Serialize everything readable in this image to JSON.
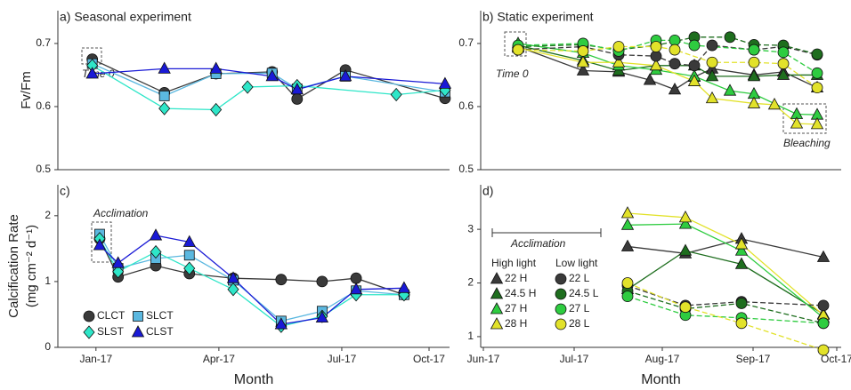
{
  "chart_data": [
    {
      "type": "line",
      "title": "a) Seasonal experiment",
      "ylabel": "Fv/Fm",
      "xlim": [
        -0.93,
        8.63
      ],
      "ylim": [
        0.5,
        0.752
      ],
      "yticks": [
        0.5,
        0.6,
        0.7
      ],
      "annotations": [
        "Time 0"
      ],
      "series": [
        {
          "name": "CLCT",
          "color": "#3a3a3a",
          "marker": "circle",
          "x": [
            -0.09,
            1.67,
            2.93,
            4.3,
            4.91,
            6.09,
            8.52
          ],
          "values": [
            0.675,
            0.622,
            0.652,
            0.655,
            0.612,
            0.658,
            0.613
          ]
        },
        {
          "name": "SLCT",
          "color": "#5bb8e0",
          "marker": "square",
          "x": [
            -0.09,
            1.67,
            2.93,
            4.3,
            4.91,
            6.09,
            8.52
          ],
          "values": [
            0.668,
            0.617,
            0.652,
            0.653,
            0.628,
            0.648,
            0.623
          ]
        },
        {
          "name": "SLST",
          "color": "#2ee6c8",
          "marker": "diamond",
          "x": [
            -0.09,
            1.67,
            2.93,
            3.7,
            4.91,
            7.33,
            8.52
          ],
          "values": [
            0.665,
            0.597,
            0.595,
            0.631,
            0.633,
            0.619,
            0.626
          ]
        },
        {
          "name": "CLST",
          "color": "#1a1ad6",
          "marker": "triangle",
          "x": [
            -0.09,
            1.67,
            2.93,
            4.3,
            4.91,
            6.09,
            8.52
          ],
          "values": [
            0.652,
            0.66,
            0.66,
            0.648,
            0.627,
            0.648,
            0.636
          ]
        }
      ]
    },
    {
      "type": "line",
      "title": "b) Static experiment",
      "xlim": [
        -0.03,
        4.02
      ],
      "ylim": [
        0.5,
        0.752
      ],
      "yticks": [
        0.5,
        0.6,
        0.7
      ],
      "annotations": [
        "Time 0",
        "Bleaching"
      ],
      "series": [
        {
          "name": "22 H",
          "color": "#3a3a3a",
          "marker": "triangle",
          "x": [
            0.39,
            1.12,
            1.52,
            1.87,
            2.15,
            2.37,
            2.57,
            3.04,
            3.37,
            3.75
          ],
          "values": [
            0.695,
            0.657,
            0.655,
            0.642,
            0.627,
            0.647,
            0.66,
            0.65,
            0.655,
            0.63
          ]
        },
        {
          "name": "24.5 H",
          "color": "#1e6e1e",
          "marker": "triangle",
          "x": [
            0.39,
            1.12,
            1.52,
            1.94,
            2.37,
            2.57,
            3.04,
            3.37,
            3.75
          ],
          "values": [
            0.697,
            0.673,
            0.657,
            0.665,
            0.665,
            0.648,
            0.648,
            0.65,
            0.65
          ]
        },
        {
          "name": "27 H",
          "color": "#2ecc40",
          "marker": "triangle",
          "x": [
            0.39,
            1.12,
            1.52,
            1.94,
            2.37,
            2.77,
            3.04,
            3.52,
            3.75
          ],
          "values": [
            0.7,
            0.685,
            0.665,
            0.658,
            0.648,
            0.625,
            0.62,
            0.588,
            0.587
          ]
        },
        {
          "name": "28 H",
          "color": "#e2e22a",
          "marker": "triangle",
          "x": [
            0.39,
            1.12,
            1.52,
            1.94,
            2.37,
            2.57,
            3.04,
            3.27,
            3.52,
            3.75
          ],
          "values": [
            0.693,
            0.67,
            0.67,
            0.665,
            0.64,
            0.613,
            0.605,
            0.603,
            0.573,
            0.572
          ]
        },
        {
          "name": "22 L",
          "color": "#3a3a3a",
          "marker": "circle",
          "dash": true,
          "x": [
            0.39,
            1.12,
            1.52,
            1.94,
            2.15,
            2.37,
            2.57,
            3.04,
            3.37,
            3.75
          ],
          "values": [
            0.69,
            0.695,
            0.682,
            0.68,
            0.668,
            0.665,
            0.697,
            0.69,
            0.695,
            0.682
          ]
        },
        {
          "name": "24.5 L",
          "color": "#1e6e1e",
          "marker": "circle",
          "dash": true,
          "x": [
            0.39,
            1.12,
            1.52,
            1.94,
            2.37,
            2.77,
            3.04,
            3.37,
            3.75
          ],
          "values": [
            0.695,
            0.698,
            0.69,
            0.697,
            0.71,
            0.71,
            0.698,
            0.697,
            0.683
          ]
        },
        {
          "name": "27 L",
          "color": "#2ecc40",
          "marker": "circle",
          "dash": true,
          "x": [
            0.39,
            1.12,
            1.52,
            1.94,
            2.15,
            2.37,
            3.04,
            3.37,
            3.75
          ],
          "values": [
            0.697,
            0.7,
            0.688,
            0.705,
            0.705,
            0.697,
            0.69,
            0.686,
            0.653
          ]
        },
        {
          "name": "28 L",
          "color": "#e2e22a",
          "marker": "circle",
          "dash": true,
          "x": [
            0.39,
            1.12,
            1.52,
            1.94,
            2.15,
            2.57,
            3.04,
            3.37,
            3.75
          ],
          "values": [
            0.69,
            0.688,
            0.695,
            0.695,
            0.69,
            0.67,
            0.67,
            0.668,
            0.63
          ]
        }
      ]
    },
    {
      "type": "line",
      "title": "c)",
      "ylabel": [
        "Calcification Rate",
        "(mg cm⁻² d⁻¹)"
      ],
      "xlabel": "Month",
      "xlim": [
        -0.93,
        8.63
      ],
      "ylim": [
        0,
        2.47
      ],
      "yticks": [
        0,
        1,
        2
      ],
      "xticks": [
        {
          "value": 0,
          "label": "Jan-17"
        },
        {
          "value": 3,
          "label": "Apr-17"
        },
        {
          "value": 6,
          "label": "Jul-17"
        },
        {
          "value": 8.13,
          "label": "Oct-17"
        }
      ],
      "annotations": [
        "Acclimation"
      ],
      "series": [
        {
          "name": "CLCT",
          "color": "#3a3a3a",
          "marker": "circle",
          "x": [
            0.09,
            0.54,
            1.46,
            2.28,
            3.35,
            4.52,
            5.52,
            6.35,
            7.52
          ],
          "values": [
            1.65,
            1.07,
            1.24,
            1.12,
            1.05,
            1.03,
            1.0,
            1.05,
            0.8
          ]
        },
        {
          "name": "SLCT",
          "color": "#5bb8e0",
          "marker": "square",
          "x": [
            0.09,
            0.54,
            1.46,
            2.28,
            3.35,
            4.52,
            5.52,
            6.35,
            7.52
          ],
          "values": [
            1.72,
            1.2,
            1.35,
            1.4,
            1.02,
            0.4,
            0.55,
            0.86,
            0.8
          ]
        },
        {
          "name": "SLST",
          "color": "#2ee6c8",
          "marker": "diamond",
          "x": [
            0.09,
            0.54,
            1.46,
            2.28,
            3.35,
            4.52,
            5.52,
            6.35,
            7.52
          ],
          "values": [
            1.65,
            1.15,
            1.45,
            1.2,
            0.88,
            0.32,
            0.47,
            0.8,
            0.8
          ]
        },
        {
          "name": "CLST",
          "color": "#1a1ad6",
          "marker": "triangle",
          "x": [
            0.09,
            0.54,
            1.46,
            2.28,
            3.35,
            4.52,
            5.52,
            6.35,
            7.52
          ],
          "values": [
            1.55,
            1.28,
            1.7,
            1.6,
            1.05,
            0.35,
            0.45,
            0.88,
            0.9
          ]
        }
      ]
    },
    {
      "type": "line",
      "title": "d)",
      "xlabel": "Month",
      "xlim": [
        -0.03,
        4.02
      ],
      "ylim": [
        0.8,
        3.83
      ],
      "yticks": [
        1,
        2,
        3
      ],
      "xticks": [
        {
          "value": 0,
          "label": "Jun-17"
        },
        {
          "value": 1.02,
          "label": "Jul-17"
        },
        {
          "value": 2.01,
          "label": "Aug-17"
        },
        {
          "value": 3.03,
          "label": "Sep-17"
        },
        {
          "value": 3.97,
          "label": "Oct-17"
        }
      ],
      "annotations": [
        "Acclimation"
      ],
      "legend_headers": [
        "High light",
        "Low light"
      ],
      "series": [
        {
          "name": "22 H",
          "color": "#3a3a3a",
          "marker": "triangle",
          "x": [
            1.62,
            2.27,
            2.9,
            3.82
          ],
          "values": [
            2.68,
            2.55,
            2.82,
            2.48
          ]
        },
        {
          "name": "24.5 H",
          "color": "#1e6e1e",
          "marker": "triangle",
          "x": [
            1.62,
            2.27,
            2.9,
            3.82
          ],
          "values": [
            1.88,
            2.6,
            2.35,
            1.42
          ]
        },
        {
          "name": "27 H",
          "color": "#2ecc40",
          "marker": "triangle",
          "x": [
            1.62,
            2.27,
            2.9,
            3.82
          ],
          "values": [
            3.08,
            3.1,
            2.6,
            1.35
          ]
        },
        {
          "name": "28 H",
          "color": "#e2e22a",
          "marker": "triangle",
          "x": [
            1.62,
            2.27,
            2.9,
            3.82
          ],
          "values": [
            3.3,
            3.22,
            2.72,
            1.4
          ]
        },
        {
          "name": "22 L",
          "color": "#3a3a3a",
          "marker": "circle",
          "dash": true,
          "x": [
            1.62,
            2.27,
            2.9,
            3.82
          ],
          "values": [
            1.95,
            1.58,
            1.65,
            1.58
          ]
        },
        {
          "name": "24.5 L",
          "color": "#1e6e1e",
          "marker": "circle",
          "dash": true,
          "x": [
            1.62,
            2.27,
            2.9,
            3.82
          ],
          "values": [
            1.85,
            1.52,
            1.62,
            1.25
          ]
        },
        {
          "name": "27 L",
          "color": "#2ecc40",
          "marker": "circle",
          "dash": true,
          "x": [
            1.62,
            2.27,
            2.9,
            3.82
          ],
          "values": [
            1.75,
            1.4,
            1.35,
            1.25
          ]
        },
        {
          "name": "28 L",
          "color": "#e2e22a",
          "marker": "circle",
          "dash": true,
          "x": [
            1.62,
            2.27,
            2.9,
            3.82
          ],
          "values": [
            2.0,
            1.55,
            1.25,
            0.75
          ]
        }
      ]
    }
  ]
}
